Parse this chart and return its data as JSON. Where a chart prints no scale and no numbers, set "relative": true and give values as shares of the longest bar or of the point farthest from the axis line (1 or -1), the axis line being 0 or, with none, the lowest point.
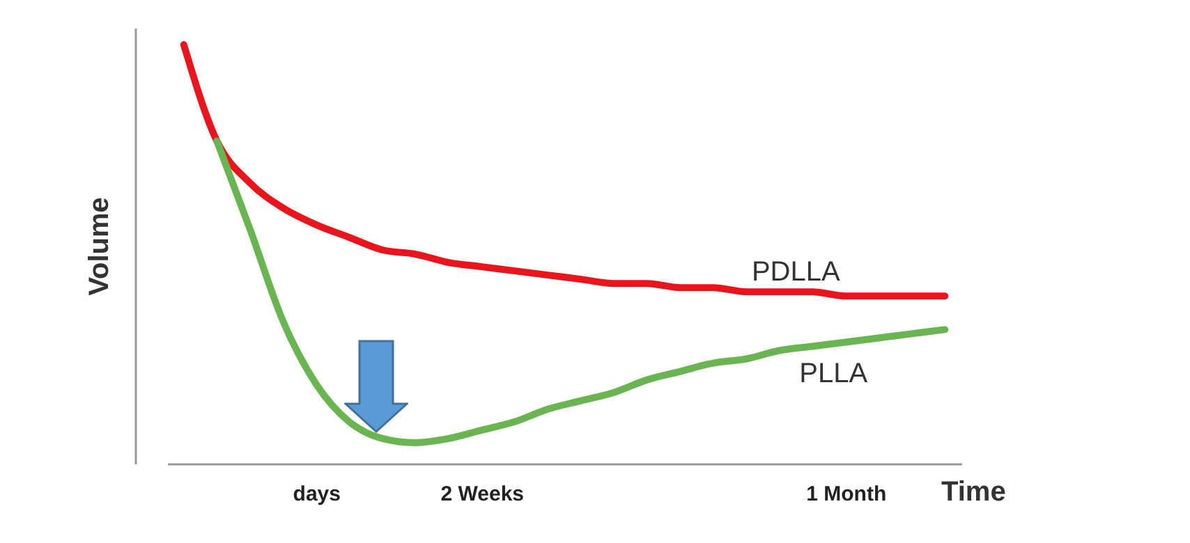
{
  "chart_data": {
    "type": "line",
    "relative": true,
    "xlabel": "Time",
    "ylabel": "Volume",
    "line_style": "solid",
    "grid": false,
    "categories": [
      null,
      null,
      null,
      null,
      "days",
      null,
      null,
      null,
      null,
      "2 Weeks",
      null,
      null,
      null,
      null,
      null,
      null,
      null,
      null,
      null,
      null,
      "1 Month",
      null,
      null,
      null
    ],
    "series": [
      {
        "name": "PDLLA",
        "color": "#e8161c",
        "values": [
          1,
          0.77,
          0.67,
          0.61,
          0.57,
          0.54,
          0.51,
          0.5,
          0.48,
          0.47,
          0.46,
          0.45,
          0.44,
          0.43,
          0.43,
          0.42,
          0.42,
          0.41,
          0.41,
          0.41,
          0.4,
          0.4,
          0.4,
          0.4
        ]
      },
      {
        "name": "PLLA",
        "color": "#6ab552",
        "values": [
          null,
          0.77,
          0.56,
          0.34,
          0.19,
          0.1,
          0.06,
          0.05,
          0.06,
          0.08,
          0.1,
          0.13,
          0.15,
          0.17,
          0.2,
          0.22,
          0.24,
          0.25,
          0.27,
          0.28,
          0.29,
          0.3,
          0.31,
          0.32
        ]
      }
    ]
  }
}
